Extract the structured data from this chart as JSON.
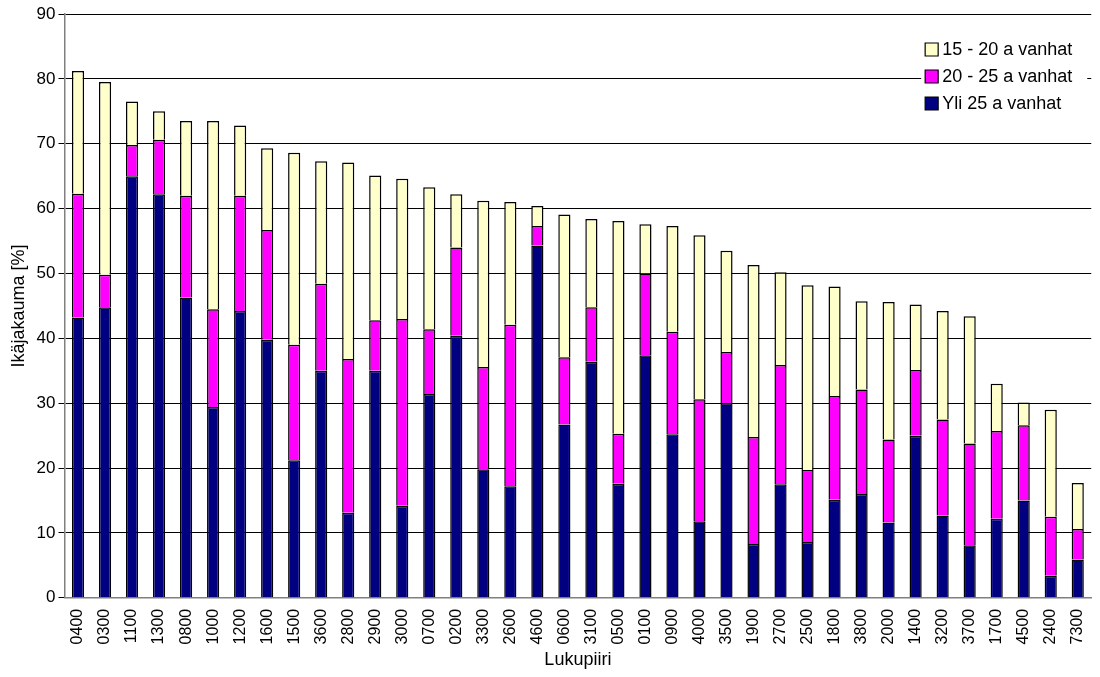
{
  "chart_data": {
    "type": "bar",
    "stacked": true,
    "xlabel": "Lukupiiri",
    "ylabel": "Ikäjakauma [%]",
    "categories": [
      "0400",
      "0300",
      "1100",
      "1300",
      "0800",
      "1000",
      "1200",
      "1600",
      "1500",
      "3600",
      "2800",
      "2900",
      "3000",
      "0700",
      "0200",
      "3300",
      "2600",
      "4600",
      "0600",
      "3100",
      "0500",
      "0100",
      "0900",
      "4000",
      "3500",
      "1900",
      "2700",
      "2500",
      "1800",
      "3800",
      "2000",
      "1400",
      "3200",
      "3700",
      "1700",
      "4500",
      "2400",
      "7300"
    ],
    "series": [
      {
        "name": "Yli 25 a vanhat",
        "color": "#000080",
        "values": [
          43.2,
          44.8,
          65,
          62.2,
          46.3,
          29.4,
          44.2,
          39.8,
          21.2,
          35,
          13.1,
          35,
          14.2,
          31.4,
          40.4,
          19.8,
          17.2,
          54.3,
          26.7,
          36.4,
          17.6,
          37.4,
          25.2,
          11.8,
          30,
          8.3,
          17.5,
          8.6,
          15.1,
          16,
          11.6,
          25,
          12.7,
          8.1,
          12.2,
          15,
          3.4,
          5.9
        ]
      },
      {
        "name": "20 - 25 a vanhat",
        "color": "#ff00ff",
        "values": [
          19.1,
          5.0,
          4.8,
          8.4,
          15.7,
          15.1,
          17.8,
          16.9,
          17.8,
          13.4,
          23.7,
          7.8,
          28.8,
          10.0,
          13.6,
          15.8,
          24.9,
          3.0,
          10.4,
          8.4,
          7.7,
          12.6,
          15.8,
          18.8,
          7.9,
          16.5,
          18.4,
          11.1,
          16.0,
          16.1,
          12.8,
          10.1,
          14.8,
          15.7,
          13.5,
          11.6,
          9.1,
          4.7
        ]
      },
      {
        "name": "15 - 20 a vanhat",
        "color": "#ffffcc",
        "values": [
          18.9,
          29.7,
          6.7,
          4.4,
          11.5,
          29.0,
          10.8,
          12.6,
          29.6,
          18.9,
          30.3,
          22.3,
          21.6,
          21.9,
          8.2,
          25.6,
          18.9,
          3.1,
          22.0,
          13.6,
          32.8,
          7.6,
          16.3,
          25.3,
          15.6,
          26.5,
          14.3,
          28.5,
          16.9,
          13.6,
          21.2,
          10.1,
          16.7,
          19.6,
          7.3,
          3.5,
          16.5,
          7.1
        ]
      }
    ],
    "ylim": [
      0,
      90
    ],
    "yticks": [
      0,
      10,
      20,
      30,
      40,
      50,
      60,
      70,
      80,
      90
    ],
    "grid": "y",
    "legend": "top right"
  }
}
